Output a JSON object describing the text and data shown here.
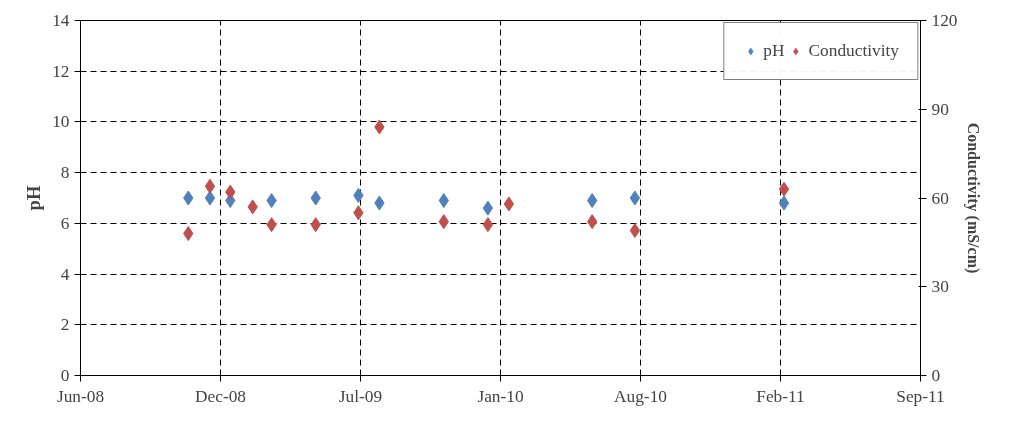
{
  "chart_data": {
    "type": "scatter",
    "ylabel": "pH",
    "y2label": "Conductivity (mS/cm)",
    "series": [
      {
        "name": "pH",
        "color": "#4f81bd",
        "x": [
          "2008-11-02",
          "2008-12-03",
          "2009-01-01",
          "2009-03-01",
          "2009-05-03",
          "2009-07-03",
          "2009-08-02",
          "2009-11-02",
          "2010-01-04",
          "2010-02-03",
          "2010-06-02",
          "2010-08-02",
          "2011-03-03"
        ],
        "values": [
          7.0,
          7.0,
          6.9,
          6.9,
          7.0,
          7.1,
          6.8,
          6.9,
          6.6,
          null,
          6.9,
          7.0,
          6.8
        ]
      },
      {
        "name": "Conductivity",
        "color": "#c0504d",
        "axis": "y2",
        "x": [
          "2008-11-02",
          "2008-12-03",
          "2009-01-01",
          "2009-02-02",
          "2009-03-01",
          "2009-05-03",
          "2009-07-03",
          "2009-08-02",
          "2009-11-02",
          "2010-01-04",
          "2010-02-03",
          "2010-06-02",
          "2010-08-02",
          "2011-03-03"
        ],
        "values": [
          48,
          64,
          62,
          57,
          51,
          51,
          55,
          84,
          52,
          51,
          58,
          52,
          49,
          63
        ]
      }
    ],
    "xlim": [
      "2008-06-01",
      "2011-09-14"
    ],
    "xticks": [
      {
        "value": "2008-06-01",
        "label": "Jun-08"
      },
      {
        "value": "2008-12-18",
        "label": "Dec-08"
      },
      {
        "value": "2009-07-06",
        "label": "Jul-09"
      },
      {
        "value": "2010-01-22",
        "label": "Jan-10"
      },
      {
        "value": "2010-08-10",
        "label": "Aug-10"
      },
      {
        "value": "2011-02-26",
        "label": "Feb-11"
      },
      {
        "value": "2011-09-14",
        "label": "Sep-11"
      }
    ],
    "ylim": [
      0,
      14
    ],
    "yticks": [
      0,
      2,
      4,
      6,
      8,
      10,
      12,
      14
    ],
    "y2lim": [
      0,
      120
    ],
    "y2ticks": [
      0,
      30,
      60,
      90,
      120
    ],
    "grid": true,
    "legend": "top right",
    "marker": "diamond"
  }
}
